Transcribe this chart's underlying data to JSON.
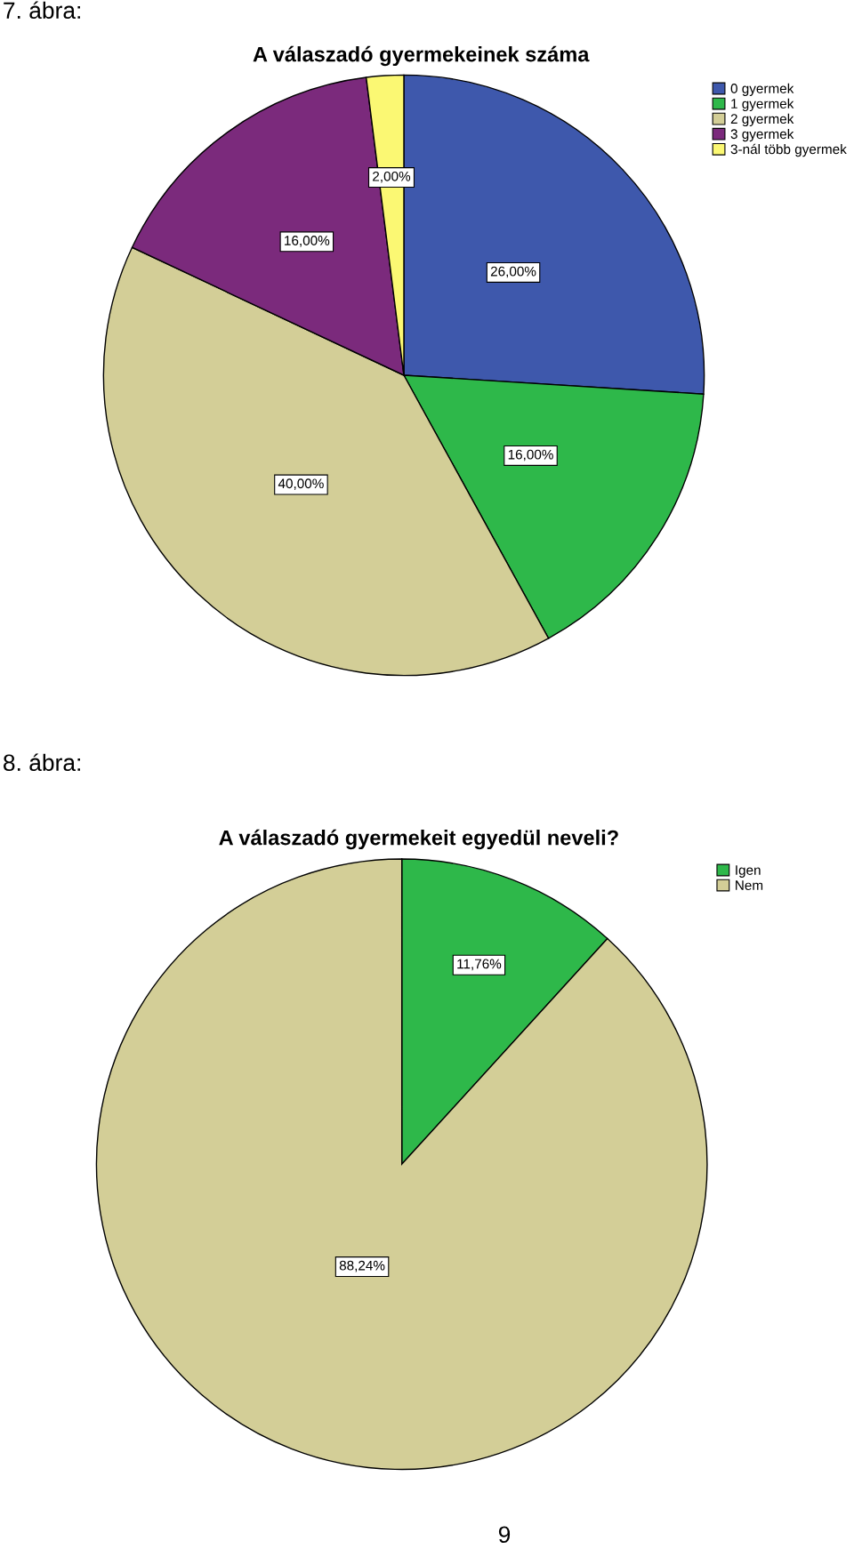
{
  "chart_data": [
    {
      "type": "pie",
      "title": "A válaszadó gyermekeinek száma",
      "categories": [
        "0 gyermek",
        "1 gyermek",
        "2 gyermek",
        "3 gyermek",
        "3-nál több gyermek"
      ],
      "values": [
        26,
        16,
        40,
        16,
        2
      ],
      "colors": [
        "#3e58ac",
        "#2eb84a",
        "#d3ce97",
        "#7b2a7c",
        "#fbf873"
      ],
      "value_labels": [
        "26,00%",
        "16,00%",
        "40,00%",
        "16,00%",
        "2,00%"
      ],
      "legend": "top right",
      "annotations": [
        "7. ábra:"
      ]
    },
    {
      "type": "pie",
      "title": "A válaszadó gyermekeit egyedül neveli?",
      "categories": [
        "Igen",
        "Nem"
      ],
      "values": [
        11.76,
        88.24
      ],
      "colors": [
        "#2eb84a",
        "#d3ce97"
      ],
      "value_labels": [
        "11,76%",
        "88,24%"
      ],
      "legend": "top right",
      "annotations": [
        "8. ábra:",
        "9"
      ]
    }
  ]
}
